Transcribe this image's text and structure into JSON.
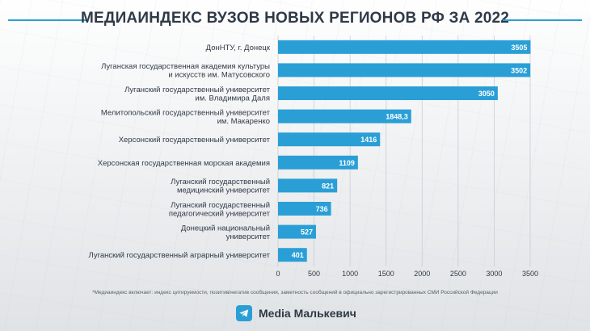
{
  "chart_data": {
    "type": "bar",
    "orientation": "horizontal",
    "title": "МЕДИАИНДЕКС ВУЗОВ НОВЫХ РЕГИОНОВ РФ ЗА 2022",
    "categories": [
      [
        "ДонНТУ, г. Донецк"
      ],
      [
        "Луганская государственная академия культуры",
        "и искусств им. Матусовского"
      ],
      [
        "Луганский государственный университет",
        "им. Владимира Даля"
      ],
      [
        "Мелитопольский государственный университет",
        "им. Макаренко"
      ],
      [
        "Херсонский государственный университет"
      ],
      [
        "Херсонская государственная морская академия"
      ],
      [
        "Луганский государственный",
        "медицинский университет"
      ],
      [
        "Луганский государственный",
        "педагогический университет"
      ],
      [
        "Донецкий национальный",
        "университет"
      ],
      [
        "Луганский государственный аграрный университет"
      ]
    ],
    "values": [
      3505,
      3502,
      3050,
      1848.3,
      1416,
      1109,
      821,
      736,
      527,
      401
    ],
    "value_labels": [
      "3505",
      "3502",
      "3050",
      "1848,3",
      "1416",
      "1109",
      "821",
      "736",
      "527",
      "401"
    ],
    "xlim": [
      0,
      3500
    ],
    "xticks": [
      0,
      500,
      1000,
      1500,
      2000,
      2500,
      3000,
      3500
    ],
    "xlabel": "",
    "ylabel": "",
    "grid": true,
    "bar_color": "#2a9fd6"
  },
  "footnote": "*Медиаиндекс включает: индекс цитируемости, позитив/негатив сообщения, заметность сообщений в официально зарегистрированных СМИ Российской Федерации",
  "brand": {
    "name": "Media Малькевич",
    "icon": "telegram-icon"
  }
}
